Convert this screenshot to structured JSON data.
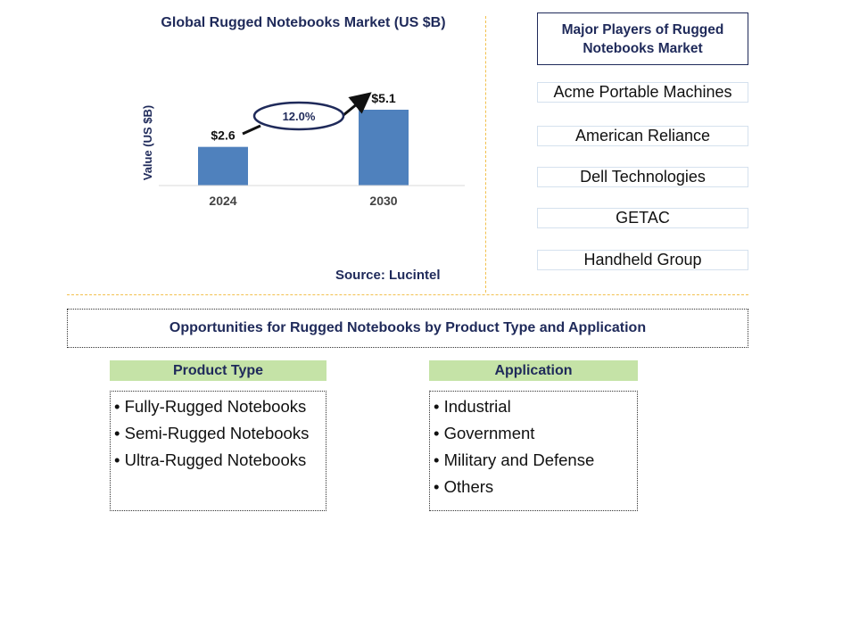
{
  "chart_data": {
    "type": "bar",
    "title": "Global Rugged Notebooks Market (US $B)",
    "categories": [
      "2024",
      "2030"
    ],
    "values": [
      2.6,
      5.1
    ],
    "data_labels": [
      "$2.6",
      "$5.1"
    ],
    "ylabel": "Value (US $B)",
    "xlabel": "",
    "ylim": [
      0,
      5.1
    ],
    "bar_color": "#4f81bd",
    "annotation": "12.0%",
    "grid": false
  },
  "source": "Source: Lucintel",
  "players": {
    "title": "Major Players of Rugged Notebooks Market",
    "items": [
      "Acme Portable Machines",
      "American Reliance",
      "Dell Technologies",
      "GETAC",
      "Handheld Group"
    ]
  },
  "opportunities": {
    "title": "Opportunities for Rugged Notebooks by Product Type and Application",
    "product_type": {
      "header": "Product Type",
      "items": [
        "Fully-Rugged Notebooks",
        "Semi-Rugged Notebooks",
        "Ultra-Rugged Notebooks"
      ]
    },
    "application": {
      "header": "Application",
      "items": [
        "Industrial",
        "Government",
        "Military and Defense",
        "Others"
      ]
    }
  },
  "colors": {
    "navy": "#1f2a5a",
    "header_green": "#c5e3a7",
    "divider_gold": "#f2c14e"
  }
}
